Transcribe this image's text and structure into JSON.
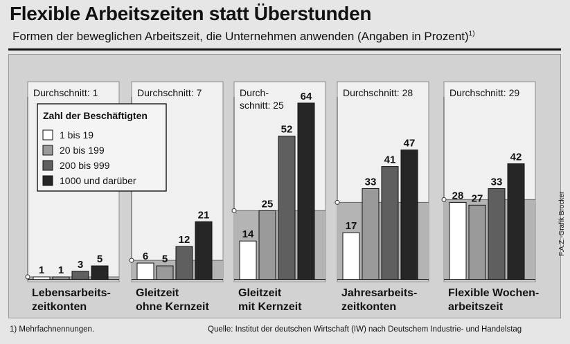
{
  "title": "Flexible Arbeitszeiten statt Überstunden",
  "subtitle": "Formen der beweglichen Arbeitszeit, die Unternehmen anwenden (Angaben in Prozent)",
  "subtitle_footnote_mark": "1)",
  "footnote": "1) Mehrfachnennungen.",
  "source": "Quelle: Institut der deutschen Wirtschaft (IW) nach Deutschem Industrie- und Handelstag",
  "credit": "F.A.Z.-Grafik Brocker",
  "colors": {
    "c1": "#ffffff",
    "c2": "#9a9a9a",
    "c3": "#5f5f5f",
    "c4": "#262626",
    "panel": "#f0f0f0",
    "avg": "#b4b4b4"
  },
  "chart_data": {
    "type": "bar",
    "legend_title": "Zahl der Beschäftigten",
    "legend_placement": "top-left",
    "ylim": [
      0,
      70
    ],
    "series": [
      {
        "name": "1 bis 19",
        "color": "#ffffff",
        "values": [
          1,
          6,
          14,
          17,
          28
        ]
      },
      {
        "name": "20 bis 199",
        "color": "#9a9a9a",
        "values": [
          1,
          5,
          25,
          33,
          27
        ]
      },
      {
        "name": "200 bis 999",
        "color": "#5f5f5f",
        "values": [
          3,
          12,
          52,
          41,
          33
        ]
      },
      {
        "name": "1000 und darüber",
        "color": "#262626",
        "values": [
          5,
          21,
          64,
          47,
          42
        ]
      }
    ],
    "categories": [
      {
        "name_lines": [
          "Lebensarbeits-",
          "zeitkonten"
        ],
        "average_lines": [
          "Durchschnitt: 1"
        ],
        "average": 1
      },
      {
        "name_lines": [
          "Gleitzeit",
          "ohne Kernzeit"
        ],
        "average_lines": [
          "Durchschnitt: 7"
        ],
        "average": 7
      },
      {
        "name_lines": [
          "Gleitzeit",
          "mit Kernzeit"
        ],
        "average_lines": [
          "Durch-",
          "schnitt: 25"
        ],
        "average": 25
      },
      {
        "name_lines": [
          "Jahresarbeits-",
          "zeitkonten"
        ],
        "average_lines": [
          "Durchschnitt: 28"
        ],
        "average": 28
      },
      {
        "name_lines": [
          "Flexible Wochen-",
          "arbeitszeit"
        ],
        "average_lines": [
          "Durchschnitt: 29"
        ],
        "average": 29
      }
    ]
  }
}
